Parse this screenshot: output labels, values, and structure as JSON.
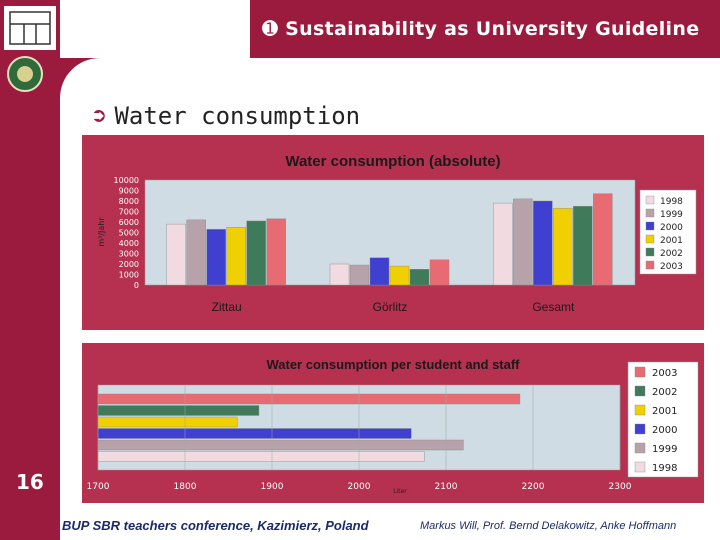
{
  "header": {
    "title": "Sustainability as University Guideline",
    "bullet_icon": "circle-1-icon"
  },
  "section": {
    "arrow_icon": "right-arrow-icon",
    "title": "Water consumption"
  },
  "page_number": "16",
  "footer": {
    "left": "BUP SBR teachers conference, Kazimierz, Poland",
    "right": "Markus Will, Prof. Bernd Delakowitz, Anke Hoffmann"
  },
  "colors": {
    "brand": "#9b1b3e",
    "panel": "#b5314f",
    "plot_bg": "#cfdce3"
  },
  "chart_data": [
    {
      "type": "bar",
      "title": "Water consumption (absolute)",
      "ylabel": "m³/Jahr",
      "ylim": [
        0,
        10000
      ],
      "yticks": [
        "10000",
        "9000",
        "8000",
        "7000",
        "6000",
        "5000",
        "4000",
        "3000",
        "2000",
        "1000",
        "0"
      ],
      "categories": [
        "Zittau",
        "Görlitz",
        "Gesamt"
      ],
      "legend_position": "right",
      "series": [
        {
          "name": "1998",
          "color": "#f2dbe0",
          "values": [
            5800,
            2000,
            7800
          ]
        },
        {
          "name": "1999",
          "color": "#b8a2aa",
          "values": [
            6200,
            1900,
            8200
          ]
        },
        {
          "name": "2000",
          "color": "#3f3fd0",
          "values": [
            5300,
            2600,
            8000
          ]
        },
        {
          "name": "2001",
          "color": "#f0d000",
          "values": [
            5500,
            1800,
            7300
          ]
        },
        {
          "name": "2002",
          "color": "#3f7a5a",
          "values": [
            6100,
            1500,
            7500
          ]
        },
        {
          "name": "2003",
          "color": "#e86a72",
          "values": [
            6300,
            2400,
            8700
          ]
        }
      ]
    },
    {
      "type": "bar",
      "orientation": "horizontal",
      "title": "Water consumption per student and staff",
      "xlabel": "Liter",
      "xlim": [
        1700,
        2300
      ],
      "xticks": [
        "1700",
        "1800",
        "1900",
        "2000",
        "2100",
        "2200",
        "2300"
      ],
      "legend_position": "right",
      "series": [
        {
          "name": "2003",
          "color": "#e86a72",
          "value": 2185
        },
        {
          "name": "2002",
          "color": "#3f7a5a",
          "value": 1885
        },
        {
          "name": "2001",
          "color": "#f0d000",
          "value": 1860
        },
        {
          "name": "2000",
          "color": "#3f3fd0",
          "value": 2060
        },
        {
          "name": "1999",
          "color": "#b8a2aa",
          "value": 2120
        },
        {
          "name": "1998",
          "color": "#f2dbe0",
          "value": 2075
        }
      ]
    }
  ]
}
